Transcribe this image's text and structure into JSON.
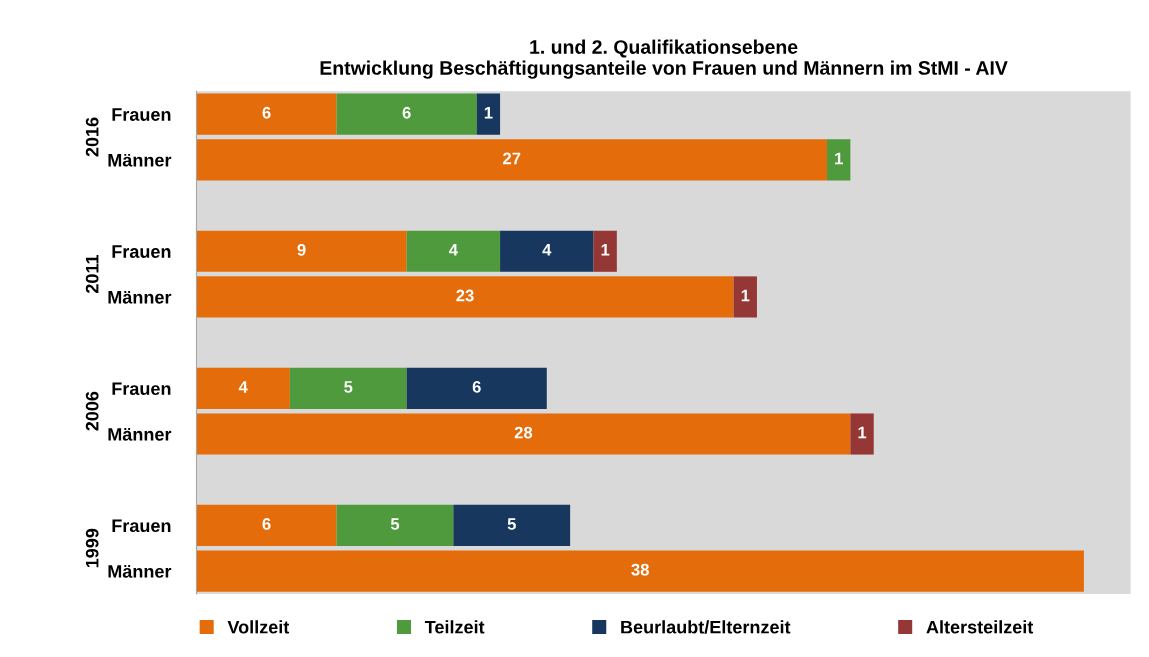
{
  "chart_data": {
    "type": "bar",
    "orientation": "horizontal",
    "stacked": true,
    "title": "1. und 2. Qualifikationsebene\nEntwicklung Beschäftigungsanteile von Frauen und Männern im StMI - AIV",
    "categories": [
      "Frauen",
      "Männer",
      null,
      "Frauen",
      "Männer",
      null,
      "Frauen",
      "Männer",
      null,
      "Frauen",
      "Männer"
    ],
    "annotations": [
      "2016",
      "2011",
      "2006",
      "1999"
    ],
    "series": [
      {
        "name": "Vollzeit",
        "color": "#e46c0a",
        "values": [
          6,
          27,
          null,
          9,
          23,
          null,
          4,
          28,
          null,
          6,
          38
        ]
      },
      {
        "name": "Teilzeit",
        "color": "#4f9a3c",
        "values": [
          6,
          1,
          null,
          4,
          null,
          null,
          5,
          null,
          null,
          5,
          null
        ]
      },
      {
        "name": "Beurlaubt/Elternzeit",
        "color": "#17375e",
        "values": [
          1,
          null,
          null,
          4,
          null,
          null,
          6,
          null,
          null,
          5,
          null
        ]
      },
      {
        "name": "Altersteilzeit",
        "color": "#953735",
        "values": [
          null,
          null,
          null,
          1,
          1,
          null,
          null,
          1,
          null,
          null,
          null
        ]
      }
    ],
    "xlim": [
      0,
      40
    ],
    "tick_labels": "y",
    "data_labels": true,
    "grid": false,
    "legend": "bottom"
  }
}
